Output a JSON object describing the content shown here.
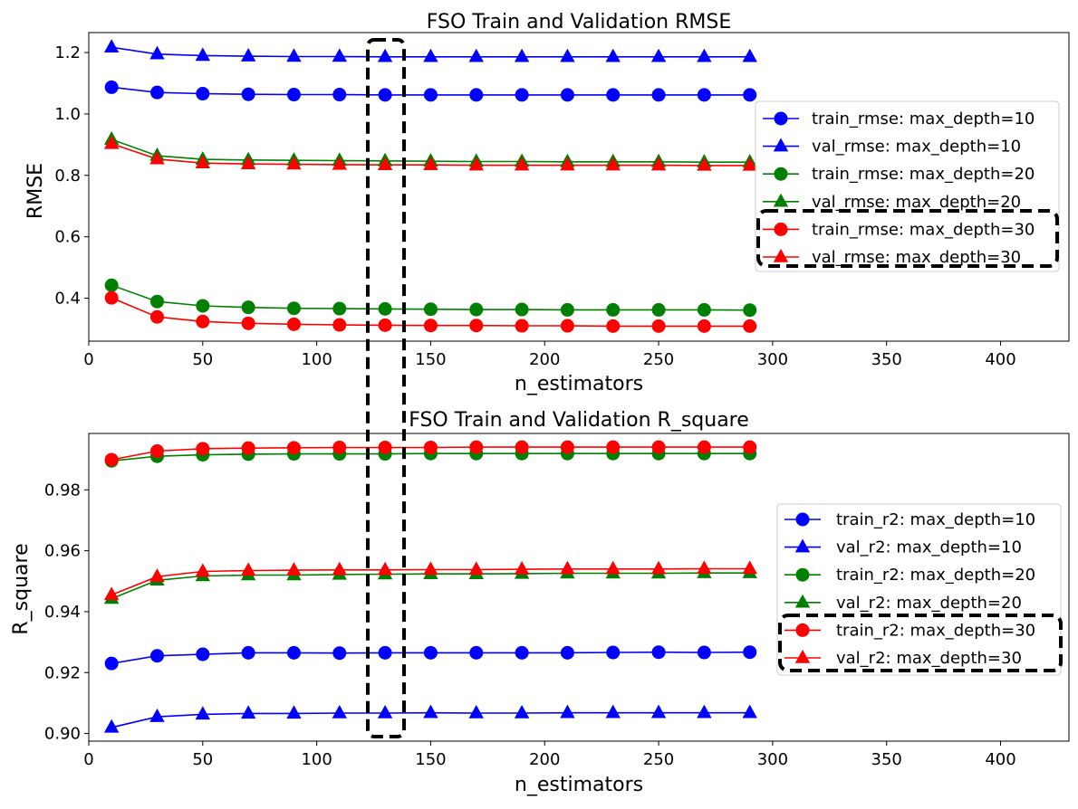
{
  "chart_data": [
    {
      "type": "line",
      "title": "FSO Train and Validation RMSE",
      "xlabel": "n_estimators",
      "ylabel": "RMSE",
      "xlim": [
        0,
        430
      ],
      "ylim": [
        0.26,
        1.265
      ],
      "xticks": [
        0,
        50,
        100,
        150,
        200,
        250,
        300,
        350,
        400
      ],
      "yticks": [
        0.4,
        0.6,
        0.8,
        1.0,
        1.2
      ],
      "ytick_labels": [
        "0.4",
        "0.6",
        "0.8",
        "1.0",
        "1.2"
      ],
      "legend_position": "center-right",
      "x": [
        10,
        30,
        50,
        70,
        90,
        110,
        130,
        150,
        170,
        190,
        210,
        230,
        250,
        270,
        290
      ],
      "series": [
        {
          "name": "train_rmse: max_depth=10",
          "color": "#0000ff",
          "marker": "circle",
          "values": [
            1.087,
            1.07,
            1.066,
            1.064,
            1.063,
            1.063,
            1.062,
            1.062,
            1.062,
            1.062,
            1.062,
            1.062,
            1.062,
            1.062,
            1.062
          ]
        },
        {
          "name": "val_rmse: max_depth=10",
          "color": "#0000ff",
          "marker": "triangle",
          "values": [
            1.217,
            1.195,
            1.19,
            1.188,
            1.187,
            1.187,
            1.186,
            1.186,
            1.186,
            1.186,
            1.186,
            1.186,
            1.186,
            1.186,
            1.186
          ]
        },
        {
          "name": "train_rmse: max_depth=20",
          "color": "#008000",
          "marker": "circle",
          "values": [
            0.442,
            0.389,
            0.375,
            0.37,
            0.367,
            0.366,
            0.365,
            0.364,
            0.363,
            0.363,
            0.362,
            0.362,
            0.362,
            0.362,
            0.361
          ]
        },
        {
          "name": "val_rmse: max_depth=20",
          "color": "#008000",
          "marker": "triangle",
          "values": [
            0.917,
            0.864,
            0.852,
            0.85,
            0.849,
            0.848,
            0.847,
            0.846,
            0.845,
            0.845,
            0.844,
            0.844,
            0.844,
            0.843,
            0.843
          ]
        },
        {
          "name": "train_rmse: max_depth=30",
          "color": "#ff0000",
          "marker": "circle",
          "values": [
            0.401,
            0.339,
            0.324,
            0.318,
            0.315,
            0.313,
            0.312,
            0.311,
            0.311,
            0.31,
            0.31,
            0.309,
            0.309,
            0.309,
            0.309
          ]
        },
        {
          "name": "val_rmse: max_depth=30",
          "color": "#ff0000",
          "marker": "triangle",
          "values": [
            0.903,
            0.853,
            0.84,
            0.837,
            0.836,
            0.835,
            0.834,
            0.834,
            0.833,
            0.833,
            0.833,
            0.833,
            0.833,
            0.832,
            0.832
          ]
        }
      ]
    },
    {
      "type": "line",
      "title": "FSO Train and Validation R_square",
      "xlabel": "n_estimators",
      "ylabel": "R_square",
      "xlim": [
        0,
        430
      ],
      "ylim": [
        0.8975,
        0.9985
      ],
      "xticks": [
        0,
        50,
        100,
        150,
        200,
        250,
        300,
        350,
        400
      ],
      "yticks": [
        0.9,
        0.92,
        0.94,
        0.96,
        0.98
      ],
      "ytick_labels": [
        "0.90",
        "0.92",
        "0.94",
        "0.96",
        "0.98"
      ],
      "legend_position": "center-right",
      "x": [
        10,
        30,
        50,
        70,
        90,
        110,
        130,
        150,
        170,
        190,
        210,
        230,
        250,
        270,
        290
      ],
      "series": [
        {
          "name": "train_r2: max_depth=10",
          "color": "#0000ff",
          "marker": "circle",
          "values": [
            0.923,
            0.9255,
            0.926,
            0.9265,
            0.9265,
            0.9264,
            0.9265,
            0.9265,
            0.9265,
            0.9265,
            0.9265,
            0.9266,
            0.9267,
            0.9266,
            0.9267
          ]
        },
        {
          "name": "val_r2: max_depth=10",
          "color": "#0000ff",
          "marker": "triangle",
          "values": [
            0.902,
            0.9055,
            0.9063,
            0.9066,
            0.9066,
            0.9067,
            0.9067,
            0.9068,
            0.9067,
            0.9067,
            0.9068,
            0.9068,
            0.9068,
            0.9068,
            0.9068
          ]
        },
        {
          "name": "train_r2: max_depth=20",
          "color": "#008000",
          "marker": "circle",
          "values": [
            0.9895,
            0.991,
            0.9915,
            0.9917,
            0.9918,
            0.9918,
            0.9918,
            0.9919,
            0.9919,
            0.9919,
            0.9919,
            0.9919,
            0.9919,
            0.9919,
            0.9919
          ]
        },
        {
          "name": "val_r2: max_depth=20",
          "color": "#008000",
          "marker": "triangle",
          "values": [
            0.9443,
            0.9503,
            0.9517,
            0.952,
            0.952,
            0.9522,
            0.9523,
            0.9524,
            0.9524,
            0.9525,
            0.9526,
            0.9526,
            0.9526,
            0.9527,
            0.9527
          ]
        },
        {
          "name": "train_r2: max_depth=30",
          "color": "#ff0000",
          "marker": "circle",
          "values": [
            0.9899,
            0.9927,
            0.9935,
            0.9937,
            0.9938,
            0.9939,
            0.9939,
            0.9939,
            0.994,
            0.994,
            0.994,
            0.994,
            0.994,
            0.994,
            0.994
          ]
        },
        {
          "name": "val_r2: max_depth=30",
          "color": "#ff0000",
          "marker": "triangle",
          "values": [
            0.9455,
            0.9515,
            0.9532,
            0.9535,
            0.9536,
            0.9537,
            0.9537,
            0.9538,
            0.9538,
            0.9539,
            0.954,
            0.954,
            0.954,
            0.9541,
            0.9541
          ]
        }
      ]
    }
  ]
}
